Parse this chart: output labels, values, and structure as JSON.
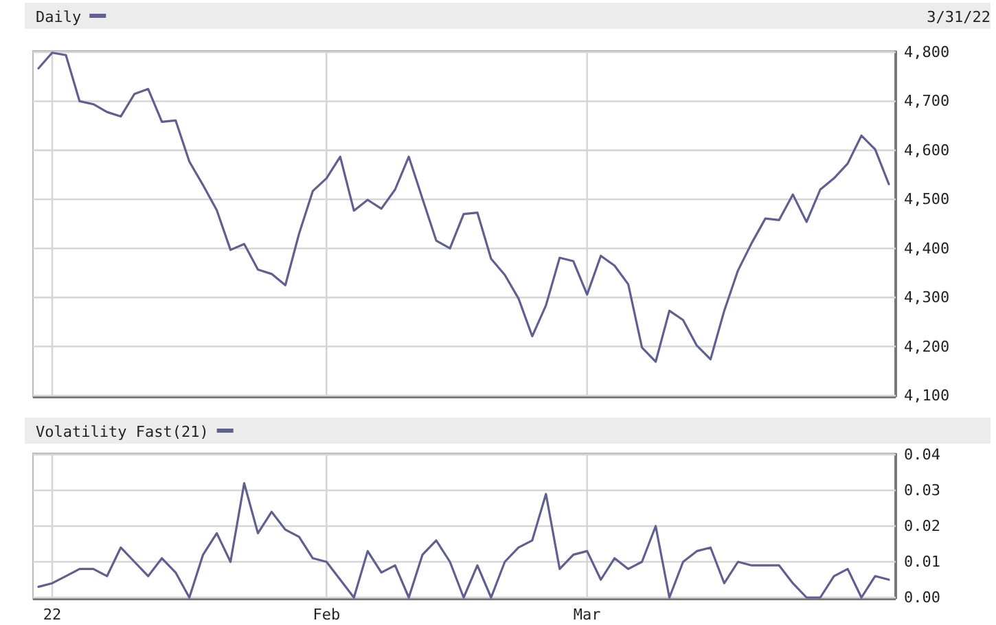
{
  "chart_data": [
    {
      "type": "line",
      "categories": [
        null,
        null,
        null,
        null,
        null,
        null,
        null,
        null,
        null,
        null,
        null,
        null,
        null,
        null,
        null,
        null,
        null,
        null,
        null,
        null,
        null,
        null,
        null,
        null,
        null,
        null,
        null,
        null,
        null,
        null,
        null,
        null,
        null,
        null,
        null,
        null,
        null,
        null,
        null,
        null,
        null,
        null,
        null,
        null,
        null,
        null,
        null,
        null,
        null,
        null,
        null,
        null,
        null,
        null,
        null,
        null,
        null,
        null,
        null,
        null,
        null,
        null,
        null
      ],
      "series": [
        {
          "name": "Daily",
          "color": "#5f5f90",
          "values": [
            4767,
            4799,
            4794,
            4700,
            4694,
            4678,
            4669,
            4715,
            4725,
            4658,
            4661,
            4577,
            4529,
            4478,
            4397,
            4409,
            4357,
            4348,
            4325,
            4430,
            4517,
            4543,
            4587,
            4477,
            4499,
            4481,
            4520,
            4587,
            4501,
            4416,
            4400,
            4470,
            4473,
            4379,
            4346,
            4298,
            4221,
            4284,
            4381,
            4374,
            4306,
            4385,
            4365,
            4327,
            4198,
            4169,
            4273,
            4254,
            4202,
            4174,
            4273,
            4355,
            4411,
            4461,
            4458,
            4510,
            4454,
            4520,
            4543,
            4573,
            4630,
            4602,
            4531
          ]
        }
      ],
      "ylim": [
        4100,
        4800
      ],
      "yticks": [
        {
          "value": 4100,
          "label": "4,100"
        },
        {
          "value": 4200,
          "label": "4,200"
        },
        {
          "value": 4300,
          "label": "4,300"
        },
        {
          "value": 4400,
          "label": "4,400"
        },
        {
          "value": 4500,
          "label": "4,500"
        },
        {
          "value": 4600,
          "label": "4,600"
        },
        {
          "value": 4700,
          "label": "4,700"
        },
        {
          "value": 4800,
          "label": "4,800"
        }
      ],
      "grid": true,
      "legend": "top left",
      "tick_labels": "y",
      "annotations": [
        "3/31/22"
      ]
    },
    {
      "type": "line",
      "categories": [
        null,
        "22",
        null,
        null,
        null,
        null,
        null,
        null,
        null,
        null,
        null,
        null,
        null,
        null,
        null,
        null,
        null,
        null,
        null,
        null,
        null,
        "Feb",
        null,
        null,
        null,
        null,
        null,
        null,
        null,
        null,
        null,
        null,
        null,
        null,
        null,
        null,
        null,
        null,
        null,
        null,
        "Mar",
        null,
        null,
        null,
        null,
        null,
        null,
        null,
        null,
        null,
        null,
        null,
        null,
        null,
        null,
        null,
        null,
        null,
        null,
        null,
        null,
        null,
        null
      ],
      "series": [
        {
          "name": "Volatility Fast(21)",
          "color": "#5f5f90",
          "values": [
            0.003,
            0.004,
            0.006,
            0.008,
            0.008,
            0.006,
            0.014,
            0.01,
            0.006,
            0.011,
            0.007,
            0,
            0.012,
            0.018,
            0.01,
            0.032,
            0.018,
            0.024,
            0.019,
            0.017,
            0.011,
            0.01,
            0.005,
            0,
            0.013,
            0.007,
            0.009,
            0,
            0.012,
            0.016,
            0.01,
            0,
            0.009,
            0,
            0.01,
            0.014,
            0.016,
            0.029,
            0.008,
            0.012,
            0.013,
            0.005,
            0.011,
            0.008,
            0.01,
            0.02,
            0,
            0.01,
            0.013,
            0.014,
            0.004,
            0.01,
            0.009,
            0.009,
            0.009,
            0.004,
            0,
            0,
            0.006,
            0.008,
            0,
            0.006,
            0.005
          ]
        }
      ],
      "ylim": [
        0,
        0.04
      ],
      "yticks": [
        {
          "value": 0,
          "label": "0.00"
        },
        {
          "value": 0.01,
          "label": "0.01"
        },
        {
          "value": 0.02,
          "label": "0.02"
        },
        {
          "value": 0.03,
          "label": "0.03"
        },
        {
          "value": 0.04,
          "label": "0.04"
        }
      ],
      "grid": true,
      "legend": "top left"
    }
  ]
}
